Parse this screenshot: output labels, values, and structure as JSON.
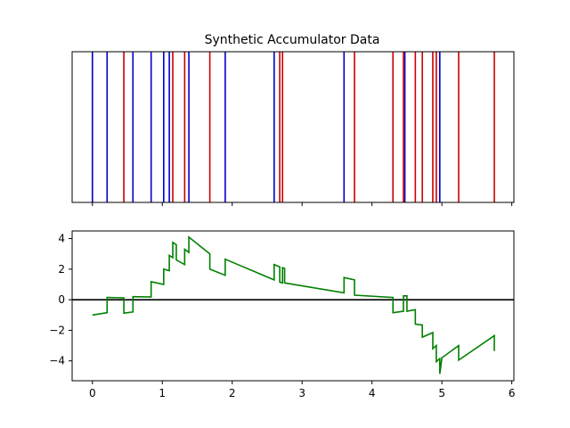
{
  "chart_data": [
    {
      "type": "event-lines",
      "title": "Synthetic Accumulator Data",
      "xlim": [
        -0.29,
        6.03
      ],
      "x_tick_labels_shown": false,
      "y_ticks_shown": false,
      "events": {
        "blue": {
          "color": "#0000cc",
          "x": [
            0.0,
            0.21,
            0.58,
            0.84,
            1.02,
            1.1,
            1.38,
            1.9,
            2.6,
            3.6,
            4.47,
            4.97
          ]
        },
        "red": {
          "color": "#cc0000",
          "x": [
            0.45,
            1.15,
            1.32,
            1.68,
            2.68,
            2.72,
            3.75,
            4.3,
            4.45,
            4.62,
            4.72,
            4.87,
            4.92,
            5.24,
            5.75
          ]
        }
      }
    },
    {
      "type": "line",
      "xlim": [
        -0.29,
        6.03
      ],
      "ylim": [
        -5.3,
        4.5
      ],
      "x_ticks": [
        "0",
        "1",
        "2",
        "3",
        "4",
        "5",
        "6"
      ],
      "y_ticks": [
        "−4",
        "−2",
        "0",
        "2",
        "4"
      ],
      "hline": {
        "y": 0,
        "color": "#000000"
      },
      "series": [
        {
          "color": "#008000",
          "points": [
            [
              0.0,
              -1.0
            ],
            [
              0.21,
              -0.85
            ],
            [
              0.21,
              0.15
            ],
            [
              0.45,
              0.12
            ],
            [
              0.45,
              -0.88
            ],
            [
              0.58,
              -0.8
            ],
            [
              0.58,
              0.2
            ],
            [
              0.84,
              0.18
            ],
            [
              0.84,
              1.18
            ],
            [
              1.02,
              1.0
            ],
            [
              1.02,
              2.0
            ],
            [
              1.1,
              1.9
            ],
            [
              1.1,
              2.9
            ],
            [
              1.15,
              2.75
            ],
            [
              1.15,
              3.75
            ],
            [
              1.2,
              3.6
            ],
            [
              1.2,
              2.6
            ],
            [
              1.32,
              2.3
            ],
            [
              1.32,
              3.3
            ],
            [
              1.38,
              3.1
            ],
            [
              1.38,
              4.1
            ],
            [
              1.68,
              3.0
            ],
            [
              1.68,
              2.0
            ],
            [
              1.9,
              1.6
            ],
            [
              1.9,
              2.65
            ],
            [
              2.6,
              1.3
            ],
            [
              2.6,
              2.3
            ],
            [
              2.68,
              2.15
            ],
            [
              2.68,
              1.15
            ],
            [
              2.72,
              1.1
            ],
            [
              2.72,
              2.1
            ],
            [
              2.75,
              2.05
            ],
            [
              2.75,
              1.1
            ],
            [
              3.6,
              0.45
            ],
            [
              3.6,
              1.45
            ],
            [
              3.75,
              1.3
            ],
            [
              3.75,
              0.3
            ],
            [
              4.3,
              0.15
            ],
            [
              4.3,
              -0.85
            ],
            [
              4.45,
              -0.75
            ],
            [
              4.45,
              0.25
            ],
            [
              4.5,
              0.25
            ],
            [
              4.5,
              -0.75
            ],
            [
              4.62,
              -0.65
            ],
            [
              4.62,
              -1.6
            ],
            [
              4.72,
              -1.65
            ],
            [
              4.72,
              -2.45
            ],
            [
              4.87,
              -2.15
            ],
            [
              4.87,
              -3.2
            ],
            [
              4.92,
              -3.0
            ],
            [
              4.92,
              -4.05
            ],
            [
              4.97,
              -3.85
            ],
            [
              4.97,
              -4.85
            ],
            [
              5.0,
              -3.8
            ],
            [
              5.24,
              -3.0
            ],
            [
              5.24,
              -3.95
            ],
            [
              5.75,
              -2.35
            ],
            [
              5.75,
              -3.35
            ]
          ]
        }
      ]
    }
  ]
}
